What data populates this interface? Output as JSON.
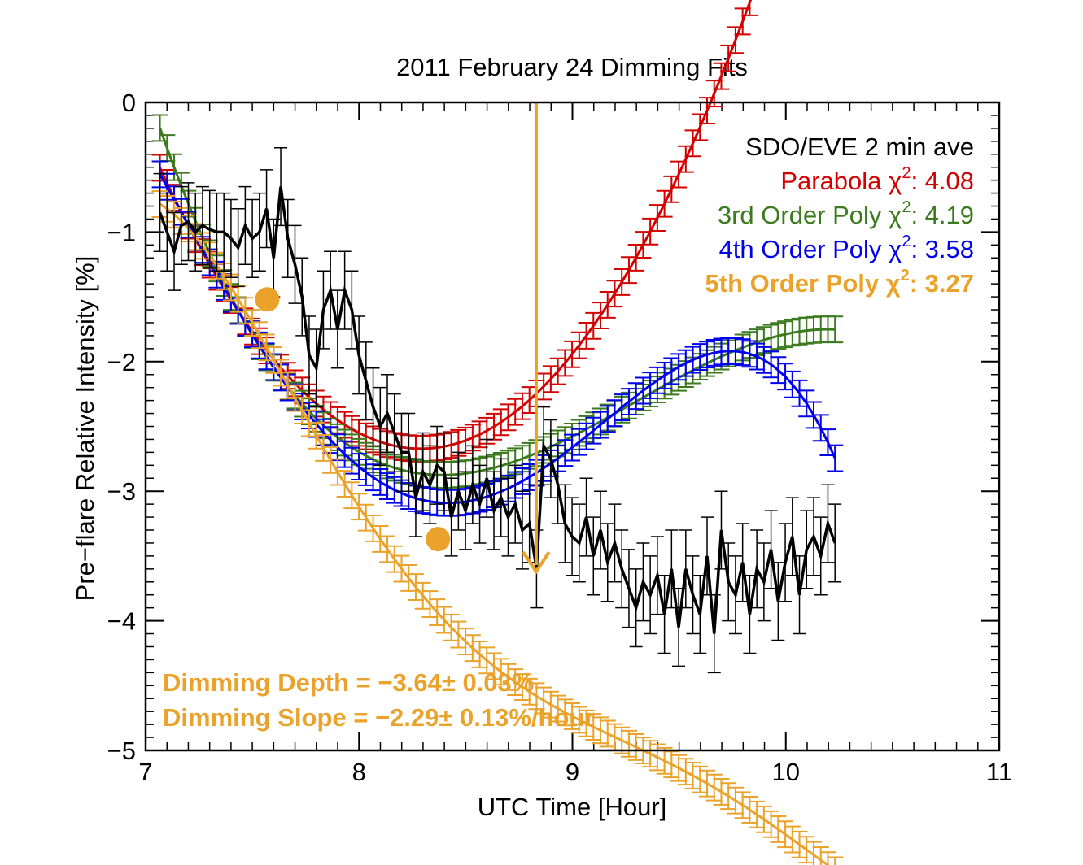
{
  "chart_data": {
    "type": "line",
    "title": "2011 February 24 Dimming Fits",
    "xlabel": "UTC Time [Hour]",
    "ylabel": "Pre−flare Relative Intensity [%]",
    "xlim": [
      7,
      11
    ],
    "ylim": [
      -5,
      0
    ],
    "xticks": [
      7,
      8,
      9,
      10,
      11
    ],
    "yticks": [
      0,
      -1,
      -2,
      -3,
      -4,
      -5
    ],
    "xtick_labels": [
      "7",
      "8",
      "9",
      "10",
      "11"
    ],
    "ytick_labels": [
      "0",
      "−1",
      "−2",
      "−3",
      "−4",
      "−5"
    ],
    "legend_placement": "top-right",
    "legend": [
      {
        "label": "SDO/EVE 2 min ave",
        "chi2_value": "",
        "color": "#000000"
      },
      {
        "label": "Parabola χ",
        "chi2_value": ": 4.08",
        "color": "#d40000"
      },
      {
        "label": "3rd Order Poly χ",
        "chi2_value": ": 4.19",
        "color": "#3c7a1e"
      },
      {
        "label": "4th Order Poly χ",
        "chi2_value": ": 3.58",
        "color": "#0000ee"
      },
      {
        "label": "5th Order Poly χ",
        "chi2_value": ": 3.27",
        "color": "#eaa22a"
      }
    ],
    "superscript": "2",
    "annotations": {
      "depth": "Dimming Depth = −3.64± 0.03%",
      "slope": "Dimming Slope = −2.29± 0.13%/hour"
    },
    "arrow_x": 8.83,
    "arrow_y_end": -3.62,
    "slope_points": [
      {
        "x": 7.57,
        "y": -1.52
      },
      {
        "x": 8.37,
        "y": -3.37
      }
    ],
    "observations": {
      "x_start": 7.067,
      "x_step": 0.0333,
      "y": [
        -0.85,
        -1.0,
        -1.15,
        -0.95,
        -0.92,
        -1.0,
        -0.95,
        -0.98,
        -1.0,
        -1.0,
        -1.05,
        -1.12,
        -0.95,
        -1.05,
        -1.0,
        -0.82,
        -1.2,
        -0.65,
        -1.05,
        -1.25,
        -1.5,
        -1.95,
        -2.05,
        -1.6,
        -1.45,
        -1.75,
        -1.45,
        -1.6,
        -1.95,
        -2.15,
        -2.35,
        -2.5,
        -2.4,
        -2.55,
        -2.7,
        -2.7,
        -3.05,
        -2.85,
        -2.95,
        -2.8,
        -2.85,
        -3.2,
        -3.0,
        -3.15,
        -2.95,
        -3.1,
        -2.9,
        -3.15,
        -3.05,
        -3.2,
        -3.1,
        -3.3,
        -3.25,
        -3.6,
        -2.65,
        -2.75,
        -2.95,
        -3.25,
        -3.35,
        -3.4,
        -3.2,
        -3.5,
        -3.3,
        -3.55,
        -3.4,
        -3.6,
        -3.75,
        -3.9,
        -3.7,
        -3.8,
        -3.65,
        -3.95,
        -3.6,
        -4.05,
        -3.6,
        -3.8,
        -3.95,
        -3.5,
        -4.1,
        -3.3,
        -3.7,
        -3.8,
        -3.55,
        -3.95,
        -3.6,
        -3.7,
        -3.45,
        -3.85,
        -3.55,
        -3.35,
        -3.8,
        -3.45,
        -3.35,
        -3.5,
        -3.25,
        -3.4,
        -3.6,
        -3.5,
        -3.75,
        -3.55,
        -3.45,
        -3.6,
        -3.3,
        -3.7,
        -3.5,
        -3.3,
        -3.6,
        -3.85,
        -3.4,
        -3.65,
        -3.45,
        -3.2,
        -3.5,
        -3.7,
        -3.4,
        -3.6,
        -3.3,
        -3.5,
        -3.55,
        -3.4,
        -3.6,
        -3.3,
        -3.5,
        -3.2,
        -3.45,
        -3.6,
        -3.2,
        -3.05,
        -3.3,
        -3.4,
        -3.2,
        -3.65,
        -3.75,
        -3.55,
        -3.3,
        -3.5,
        -3.6,
        -3.2,
        -3.45,
        -3.3,
        -3.5,
        -3.55,
        -3.25,
        -3.45,
        -3.6,
        -3.35,
        -3.5,
        -3.1,
        -3.35,
        -3.45
      ],
      "y_error": 0.3
    },
    "fits": [
      {
        "name": "Parabola",
        "color": "#d40000",
        "x_range": [
          7.067,
          10.233
        ],
        "x_step": 0.0333,
        "coefficients": [
          -0.62,
          -3.45,
          1.45
        ],
        "center": 7.1,
        "y_error": 0.1
      },
      {
        "name": "3rd Order Poly",
        "color": "#3c7a1e",
        "x_range": [
          7.067,
          10.233
        ],
        "x_step": 0.0333,
        "coefficients": [
          -0.35,
          -4.55,
          2.5,
          -0.38
        ],
        "center": 7.1,
        "y_error": 0.1
      },
      {
        "name": "4th Order Poly",
        "color": "#0000ee",
        "x_range": [
          7.067,
          10.233
        ],
        "x_step": 0.0333,
        "coefficients": [
          -0.65,
          -2.9,
          -0.3,
          1.2,
          -0.28
        ],
        "center": 7.1,
        "y_error": 0.1
      },
      {
        "name": "5th Order Poly",
        "color": "#eaa22a",
        "x_range": [
          7.067,
          10.233
        ],
        "x_step": 0.0333,
        "coefficients": [
          -0.82,
          -1.2,
          -3.6,
          3.1,
          -0.95,
          0.1
        ],
        "center": 7.1,
        "y_error": 0.1
      }
    ]
  }
}
